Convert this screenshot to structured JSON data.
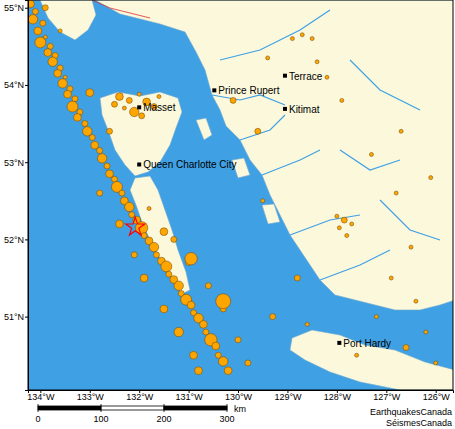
{
  "chart_data": {
    "type": "scatter",
    "xlim": [
      -134.25,
      -125.65
    ],
    "ylim": [
      50.05,
      55.1
    ],
    "xticks": [
      {
        "value": -134,
        "label": "134°W"
      },
      {
        "value": -133,
        "label": "133°W"
      },
      {
        "value": -132,
        "label": "132°W"
      },
      {
        "value": -131,
        "label": "131°W"
      },
      {
        "value": -130,
        "label": "130°W"
      },
      {
        "value": -129,
        "label": "129°W"
      },
      {
        "value": -128,
        "label": "128°W"
      },
      {
        "value": -127,
        "label": "127°W"
      },
      {
        "value": -126,
        "label": "126°W"
      }
    ],
    "yticks": [
      {
        "value": 51,
        "label": "51°N"
      },
      {
        "value": 52,
        "label": "52°N"
      },
      {
        "value": 53,
        "label": "53°N"
      },
      {
        "value": 54,
        "label": "54°N"
      },
      {
        "value": 55,
        "label": "55°N"
      }
    ],
    "series": [
      {
        "color": "#ffa500",
        "marker": "circle",
        "x": [
          -134.2,
          -134.1,
          -134.15,
          -133.95,
          -134.05,
          -133.9,
          -134.0,
          -133.8,
          -133.85,
          -133.7,
          -133.75,
          -133.6,
          -133.65,
          -133.5,
          -133.55,
          -133.4,
          -133.45,
          -133.3,
          -133.35,
          -133.2,
          -133.25,
          -133.1,
          -133.05,
          -132.95,
          -132.9,
          -132.8,
          -132.75,
          -132.65,
          -132.6,
          -132.5,
          -132.45,
          -132.35,
          -132.3,
          -132.2,
          -132.15,
          -132.05,
          -131.95,
          -131.9,
          -131.8,
          -131.7,
          -131.65,
          -131.55,
          -131.45,
          -131.4,
          -131.3,
          -131.2,
          -131.15,
          -131.05,
          -130.95,
          -130.9,
          -130.8,
          -130.7,
          -130.65,
          -130.55,
          -130.45,
          -130.4,
          -130.3,
          -130.2,
          -132.8,
          -131.8,
          -131.5,
          -132.1,
          -131.0,
          -131.9,
          -130.6,
          -131.5,
          -130.3,
          -131.2,
          -130.0,
          -130.9,
          -129.8,
          -130.8,
          -130.3,
          -130.95,
          -131.3,
          -132.4,
          -132.6,
          -133.0,
          -133.9,
          -133.6,
          -132.4,
          -132.2,
          -132.0,
          -131.85,
          -131.7,
          -132.3,
          -132.1,
          -131.95,
          -131.6,
          -132.5,
          -128.9,
          -128.7,
          -128.5,
          -128.4,
          -129.4,
          -128.2,
          -127.9,
          -129.6,
          -128.0,
          -127.85,
          -127.95,
          -127.8,
          -127.7,
          -127.3,
          -126.8,
          -126.5,
          -126.9,
          -126.2,
          -126.4,
          -128.8,
          -129.5,
          -130.1,
          -126.1,
          -126.6,
          -127.6,
          -126.0,
          -128.6,
          -129.3,
          -127.2,
          -126.7
        ],
        "values": [
          55.05,
          54.95,
          54.85,
          54.8,
          54.7,
          54.62,
          54.55,
          54.5,
          54.42,
          54.38,
          54.3,
          54.22,
          54.15,
          54.1,
          54.02,
          53.95,
          53.88,
          53.82,
          53.72,
          53.65,
          53.58,
          53.5,
          53.4,
          53.32,
          53.22,
          53.15,
          53.05,
          52.95,
          52.85,
          52.78,
          52.68,
          52.6,
          52.5,
          52.42,
          52.32,
          52.25,
          52.15,
          52.05,
          51.98,
          51.9,
          51.8,
          51.72,
          51.65,
          51.55,
          51.48,
          51.4,
          51.3,
          51.22,
          51.15,
          51.05,
          50.98,
          50.9,
          50.8,
          50.7,
          50.62,
          50.5,
          50.42,
          50.3,
          52.6,
          52.4,
          52.1,
          51.8,
          51.7,
          51.5,
          51.4,
          51.1,
          51.1,
          50.8,
          50.7,
          50.5,
          50.4,
          50.3,
          51.2,
          51.75,
          52.0,
          52.2,
          53.4,
          53.9,
          55.0,
          54.7,
          53.85,
          53.8,
          53.88,
          53.78,
          53.72,
          53.7,
          53.65,
          53.6,
          53.85,
          53.75,
          54.6,
          54.65,
          54.6,
          54.3,
          54.35,
          54.1,
          53.8,
          53.4,
          52.3,
          52.25,
          52.15,
          52.05,
          52.2,
          53.1,
          52.6,
          51.9,
          51.5,
          50.8,
          51.2,
          51.5,
          52.5,
          53.8,
          52.8,
          50.6,
          50.5,
          50.4,
          50.9,
          51.0,
          51.0,
          53.4
        ],
        "sizes": [
          3.0,
          2.5,
          3.5,
          2.5,
          3.0,
          2.0,
          4.0,
          2.5,
          3.0,
          2.5,
          3.5,
          2.5,
          3.0,
          2.0,
          3.5,
          2.5,
          3.0,
          2.5,
          4.0,
          2.5,
          3.0,
          2.5,
          3.5,
          2.5,
          3.0,
          2.5,
          3.5,
          2.5,
          3.0,
          2.5,
          4.0,
          2.5,
          3.0,
          3.5,
          2.5,
          3.0,
          4.5,
          2.5,
          3.0,
          3.5,
          2.5,
          3.0,
          4.0,
          2.5,
          3.0,
          3.5,
          2.5,
          4.0,
          3.0,
          2.5,
          3.5,
          3.0,
          2.5,
          4.5,
          3.0,
          2.5,
          3.5,
          3.0,
          2.5,
          2.0,
          3.0,
          2.5,
          2.5,
          3.0,
          2.5,
          3.0,
          2.5,
          3.5,
          2.5,
          3.0,
          2.5,
          3.0,
          5.5,
          4.5,
          2.5,
          3.0,
          2.5,
          3.0,
          2.5,
          2.0,
          3.0,
          2.5,
          2.0,
          3.0,
          2.5,
          2.0,
          3.5,
          2.5,
          2.0,
          2.5,
          2.0,
          2.0,
          2.0,
          2.0,
          2.0,
          2.0,
          2.0,
          2.5,
          2.0,
          2.5,
          2.0,
          2.0,
          2.0,
          2.0,
          2.0,
          2.0,
          2.0,
          2.0,
          2.0,
          2.5,
          2.0,
          2.5,
          2.0,
          2.5,
          2.0,
          2.0,
          2.0,
          2.5,
          2.0,
          2.0
        ]
      },
      {
        "color": "#ff0000",
        "marker": "star",
        "x": [
          -132.08
        ],
        "values": [
          52.16
        ]
      }
    ],
    "annotations": [
      {
        "text": "Terrace",
        "x": -129.05,
        "y": 54.12
      },
      {
        "text": "Prince Rupert",
        "x": -130.48,
        "y": 53.93
      },
      {
        "text": "Kitimat",
        "x": -129.05,
        "y": 53.69
      },
      {
        "text": "Masset",
        "x": -132.0,
        "y": 53.71
      },
      {
        "text": "Queen Charlotte City",
        "x": -132.0,
        "y": 52.97
      },
      {
        "text": "Port Hardy",
        "x": -127.95,
        "y": 50.66
      }
    ]
  },
  "scale_bar": {
    "ticks": [
      0,
      100,
      200,
      300
    ],
    "unit": "km"
  },
  "credits": [
    "EarthquakesCanada",
    "SéismesCanada"
  ]
}
